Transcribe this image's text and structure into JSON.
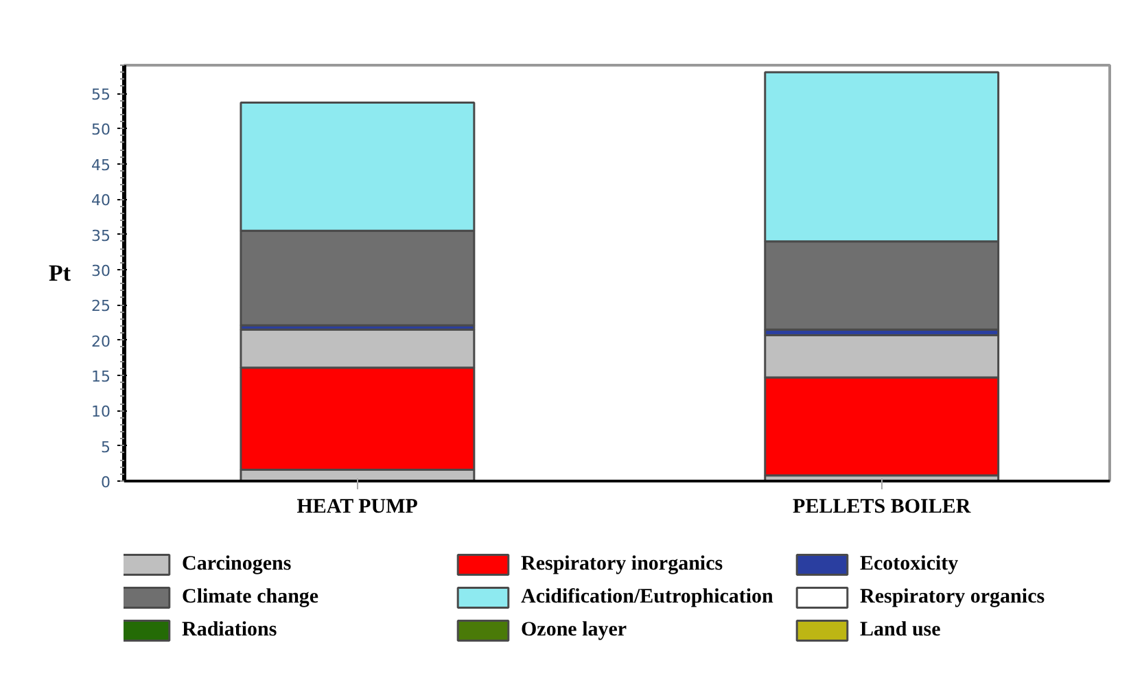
{
  "chart_data": {
    "type": "bar",
    "stacked": true,
    "ylabel": "Pt",
    "categories": [
      "HEAT PUMP",
      "PELLETS BOILER"
    ],
    "series": [
      {
        "name": "Carcinogens",
        "color": "#bfbfbf",
        "values": [
          1.6,
          0.8
        ]
      },
      {
        "name": "Respiratory inorganics",
        "color": "#ff0000",
        "values": [
          14.5,
          13.9
        ]
      },
      {
        "color": "#bfbfbf",
        "values": [
          5.4,
          6.0
        ]
      },
      {
        "name": "Ecotoxicity",
        "color": "#2a3ea0",
        "values": [
          0.6,
          0.8
        ]
      },
      {
        "name": "Climate change",
        "color": "#6f6f6f",
        "values": [
          13.4,
          12.5
        ]
      },
      {
        "name": "Acidification/Eutrophication",
        "color": "#8eeaf0",
        "values": [
          18.2,
          24.0
        ]
      },
      {
        "name": "Respiratory organics",
        "color": "#ffffff",
        "values": [
          0,
          0
        ]
      },
      {
        "name": "Radiations",
        "color": "#246b06",
        "values": [
          0,
          0
        ]
      },
      {
        "name": "Ozone layer",
        "color": "#4a7a08",
        "values": [
          0,
          0
        ]
      },
      {
        "name": "Land use",
        "color": "#bdb614",
        "values": [
          0,
          0
        ]
      }
    ],
    "ylim": [
      0,
      59
    ],
    "yticks": [
      0,
      5,
      10,
      15,
      20,
      25,
      30,
      35,
      40,
      45,
      50,
      55
    ],
    "grid": false,
    "legend": "bottom"
  }
}
